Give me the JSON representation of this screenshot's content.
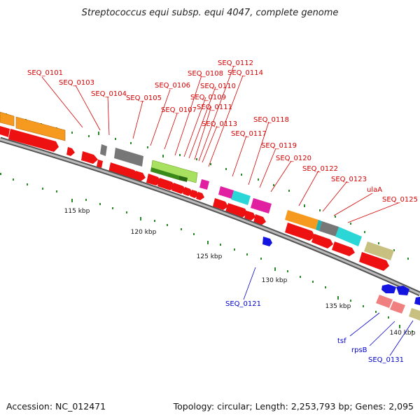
{
  "title": "Streptococcus equi subsp. equi 4047, complete genome",
  "footer": {
    "accession": "Accession: NC_012471",
    "topology": "Topology: circular; Length: 2,253,793 bp; Genes: 2,095"
  },
  "colors": {
    "forward_label": "#d40000",
    "reverse_label": "#0000cc",
    "backbone": "#888888",
    "tick_green": "#2a8a2a"
  },
  "scale_labels": [
    "115 kbp",
    "120 kbp",
    "125 kbp",
    "130 kbp",
    "135 kbp",
    "140 kbp"
  ],
  "forward_genes": [
    "SEQ_0101",
    "SEQ_0103",
    "SEQ_0104",
    "SEQ_0105",
    "SEQ_0106",
    "SEQ_0107",
    "SEQ_0108",
    "SEQ_0109",
    "SEQ_0110",
    "SEQ_0111",
    "SEQ_0112",
    "SEQ_0113",
    "SEQ_0114",
    "SEQ_0117",
    "SEQ_0118",
    "SEQ_0119",
    "SEQ_0120",
    "SEQ_0122",
    "SEQ_0123",
    "ulaA",
    "SEQ_0125"
  ],
  "reverse_genes": [
    "SEQ_0121",
    "tsf",
    "rpsB",
    "SEQ_0131"
  ]
}
